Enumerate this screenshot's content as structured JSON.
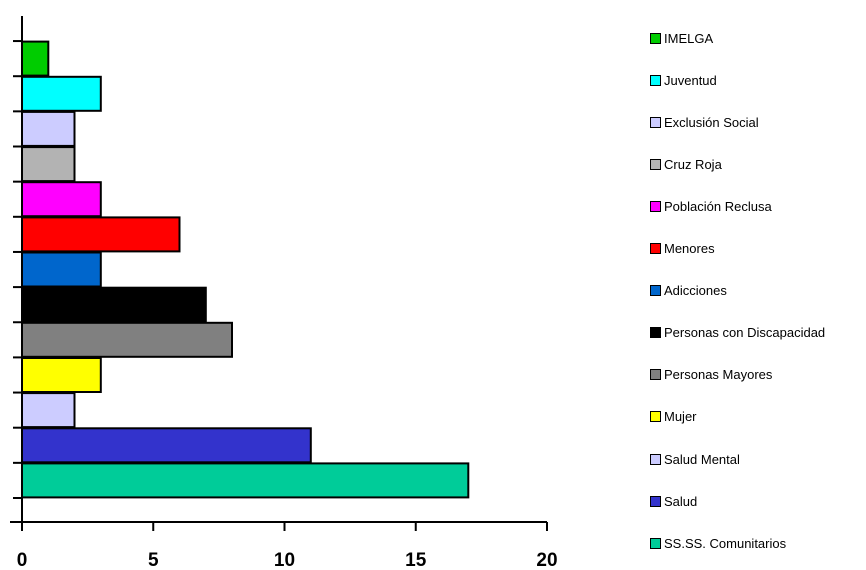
{
  "chart_data": {
    "type": "bar",
    "orientation": "horizontal",
    "categories": [
      "SS.SS. Comunitarios",
      "Salud",
      "Salud Mental",
      "Mujer",
      "Personas Mayores",
      "Personas con Discapacidad",
      "Adicciones",
      "Menores",
      "Población Reclusa",
      "Cruz Roja",
      "Exclusión Social",
      "Juventud",
      "IMELGA"
    ],
    "values": [
      17,
      11,
      2,
      3,
      8,
      7,
      3,
      6,
      3,
      2,
      2,
      3,
      1
    ],
    "colors": [
      "#00cc99",
      "#3333cc",
      "#ccccff",
      "#ffff00",
      "#808080",
      "#000000",
      "#0066cc",
      "#ff0000",
      "#ff00ff",
      "#b3b3b3",
      "#ccccff",
      "#00ffff",
      "#00cc00"
    ],
    "xlim": [
      0,
      20
    ],
    "xticks": [
      "0",
      "5",
      "10",
      "15",
      "20"
    ],
    "legend_position": "right",
    "grid": false,
    "title": "",
    "xlabel": "",
    "ylabel": ""
  }
}
